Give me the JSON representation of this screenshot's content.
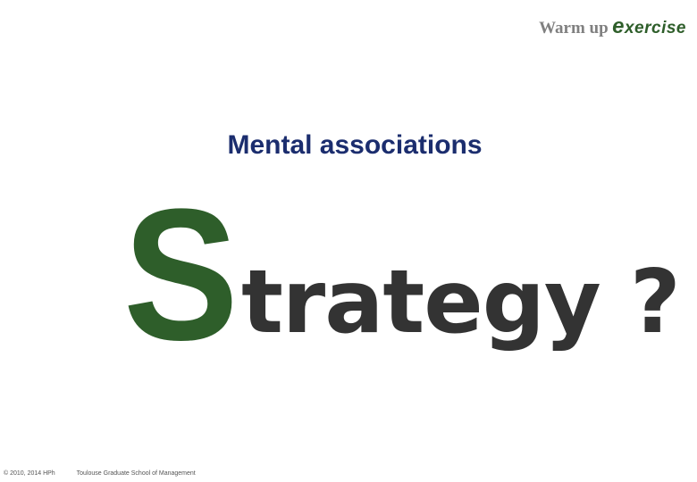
{
  "header": {
    "warm_up": "Warm up",
    "exercise_first": "e",
    "exercise_rest": "xercise"
  },
  "title": "Mental associations",
  "headline": {
    "initial": "S",
    "rest": "trategy ?"
  },
  "footer": {
    "copyright": "© 2010, 2014 HPh",
    "school": "Toulouse Graduate School of Management"
  },
  "colors": {
    "title": "#1b2d6e",
    "accent_green": "#2e5e2a",
    "headline_gray": "#333333",
    "label_gray": "#808080"
  }
}
